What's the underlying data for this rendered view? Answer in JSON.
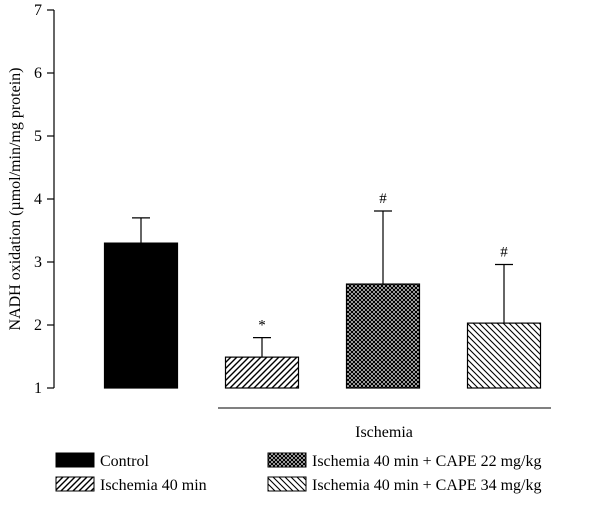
{
  "chart_data": {
    "type": "bar",
    "categories": [
      "Control",
      "Ischemia 40 min",
      "Ischemia 40 min + CAPE 22 mg/kg",
      "Ischemia 40 min + CAPE 34 mg/kg"
    ],
    "values": [
      3.3,
      1.49,
      2.65,
      2.03
    ],
    "errors": [
      0.4,
      0.31,
      1.16,
      0.93
    ],
    "annotations": [
      "",
      "*",
      "#",
      "#"
    ],
    "fills": [
      "solid",
      "diagonal-hatch",
      "crosshatch",
      "reverse-hatch"
    ],
    "ylabel": "NADH oxidation (µmol/min/mg protein)",
    "xlabel": "",
    "ylim": [
      1,
      7
    ],
    "yticks": [
      1,
      2,
      3,
      4,
      5,
      6,
      7
    ],
    "group_label": "Ischemia",
    "legend": [
      {
        "label": "Control",
        "fill": "solid"
      },
      {
        "label": "Ischemia 40 min",
        "fill": "diagonal-hatch"
      },
      {
        "label": "Ischemia 40 min + CAPE 22 mg/kg",
        "fill": "crosshatch"
      },
      {
        "label": "Ischemia 40 min + CAPE 34 mg/kg",
        "fill": "reverse-hatch"
      }
    ],
    "legend_position": "bottom",
    "grid": false
  }
}
